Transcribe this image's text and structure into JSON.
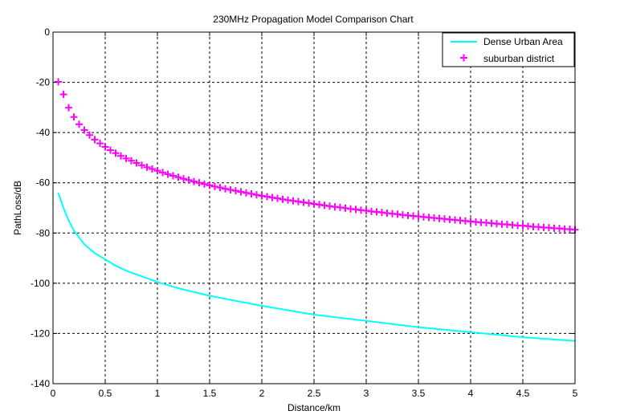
{
  "chart_data": {
    "type": "line",
    "title": "230MHz Propagation Model Comparison Chart",
    "xlabel": "Distance/km",
    "ylabel": "PathLoss/dB",
    "xlim": [
      0,
      5
    ],
    "ylim": [
      -140,
      0
    ],
    "xticks": [
      "0",
      "0.5",
      "1",
      "1.5",
      "2",
      "2.5",
      "3",
      "3.5",
      "4",
      "4.5",
      "5"
    ],
    "yticks": [
      "0",
      "-20",
      "-40",
      "-60",
      "-80",
      "-100",
      "-120",
      "-140"
    ],
    "grid": true,
    "legend_location": "top-right",
    "series": [
      {
        "name": "Dense Urban Area",
        "style": "line",
        "color": "#00ffff",
        "x": [
          0.05,
          0.1,
          0.15,
          0.2,
          0.3,
          0.4,
          0.5,
          0.6,
          0.7,
          0.8,
          1.0,
          1.2,
          1.5,
          2.0,
          2.5,
          3.0,
          3.5,
          4.0,
          4.5,
          5.0
        ],
        "y": [
          -64,
          -70,
          -75,
          -79,
          -84.5,
          -88,
          -90.5,
          -93,
          -95,
          -96.5,
          -99.5,
          -102,
          -105,
          -109,
          -112.5,
          -115,
          -117.5,
          -119.5,
          -121.5,
          -123
        ]
      },
      {
        "name": "suburban district",
        "style": "marker",
        "marker": "+",
        "color": "#ff00ff",
        "x": [
          0.05,
          0.1,
          0.15,
          0.2,
          0.25,
          0.3,
          0.35,
          0.4,
          0.45,
          0.5,
          0.55,
          0.6,
          0.65,
          0.7,
          0.75,
          0.8,
          0.85,
          0.9,
          0.95,
          1.0,
          1.05,
          1.1,
          1.15,
          1.2,
          1.25,
          1.3,
          1.35,
          1.4,
          1.45,
          1.5,
          1.55,
          1.6,
          1.65,
          1.7,
          1.75,
          1.8,
          1.85,
          1.9,
          1.95,
          2.0,
          2.05,
          2.1,
          2.15,
          2.2,
          2.25,
          2.3,
          2.35,
          2.4,
          2.45,
          2.5,
          2.55,
          2.6,
          2.65,
          2.7,
          2.75,
          2.8,
          2.85,
          2.9,
          2.95,
          3.0,
          3.05,
          3.1,
          3.15,
          3.2,
          3.25,
          3.3,
          3.35,
          3.4,
          3.45,
          3.5,
          3.55,
          3.6,
          3.65,
          3.7,
          3.75,
          3.8,
          3.85,
          3.9,
          3.95,
          4.0,
          4.05,
          4.1,
          4.15,
          4.2,
          4.25,
          4.3,
          4.35,
          4.4,
          4.45,
          4.5,
          4.55,
          4.6,
          4.65,
          4.7,
          4.75,
          4.8,
          4.85,
          4.9,
          4.95,
          5.0
        ],
        "y": [
          -19.8,
          -24.8,
          -30.1,
          -33.8,
          -36.7,
          -39.0,
          -41.0,
          -42.8,
          -44.3,
          -45.7,
          -47.0,
          -48.2,
          -49.3,
          -50.3,
          -51.2,
          -52.1,
          -53.0,
          -53.8,
          -54.5,
          -55.2,
          -55.9,
          -56.6,
          -57.2,
          -57.8,
          -58.4,
          -58.9,
          -59.5,
          -60.0,
          -60.5,
          -61.0,
          -61.5,
          -61.9,
          -62.4,
          -62.8,
          -63.2,
          -63.6,
          -64.0,
          -64.4,
          -64.8,
          -65.2,
          -65.5,
          -65.9,
          -66.2,
          -66.6,
          -66.9,
          -67.2,
          -67.5,
          -67.8,
          -68.1,
          -68.4,
          -68.7,
          -69.0,
          -69.3,
          -69.6,
          -69.8,
          -70.1,
          -70.4,
          -70.6,
          -70.9,
          -71.1,
          -71.4,
          -71.6,
          -71.8,
          -72.1,
          -72.3,
          -72.5,
          -72.8,
          -73.0,
          -73.2,
          -73.4,
          -73.6,
          -73.8,
          -74.0,
          -74.2,
          -74.4,
          -74.6,
          -74.8,
          -75.0,
          -75.2,
          -75.4,
          -75.6,
          -75.8,
          -75.9,
          -76.1,
          -76.3,
          -76.5,
          -76.6,
          -76.8,
          -77.0,
          -77.1,
          -77.3,
          -77.5,
          -77.6,
          -77.8,
          -77.9,
          -78.1,
          -78.2,
          -78.4,
          -78.5,
          -78.7
        ]
      }
    ]
  }
}
